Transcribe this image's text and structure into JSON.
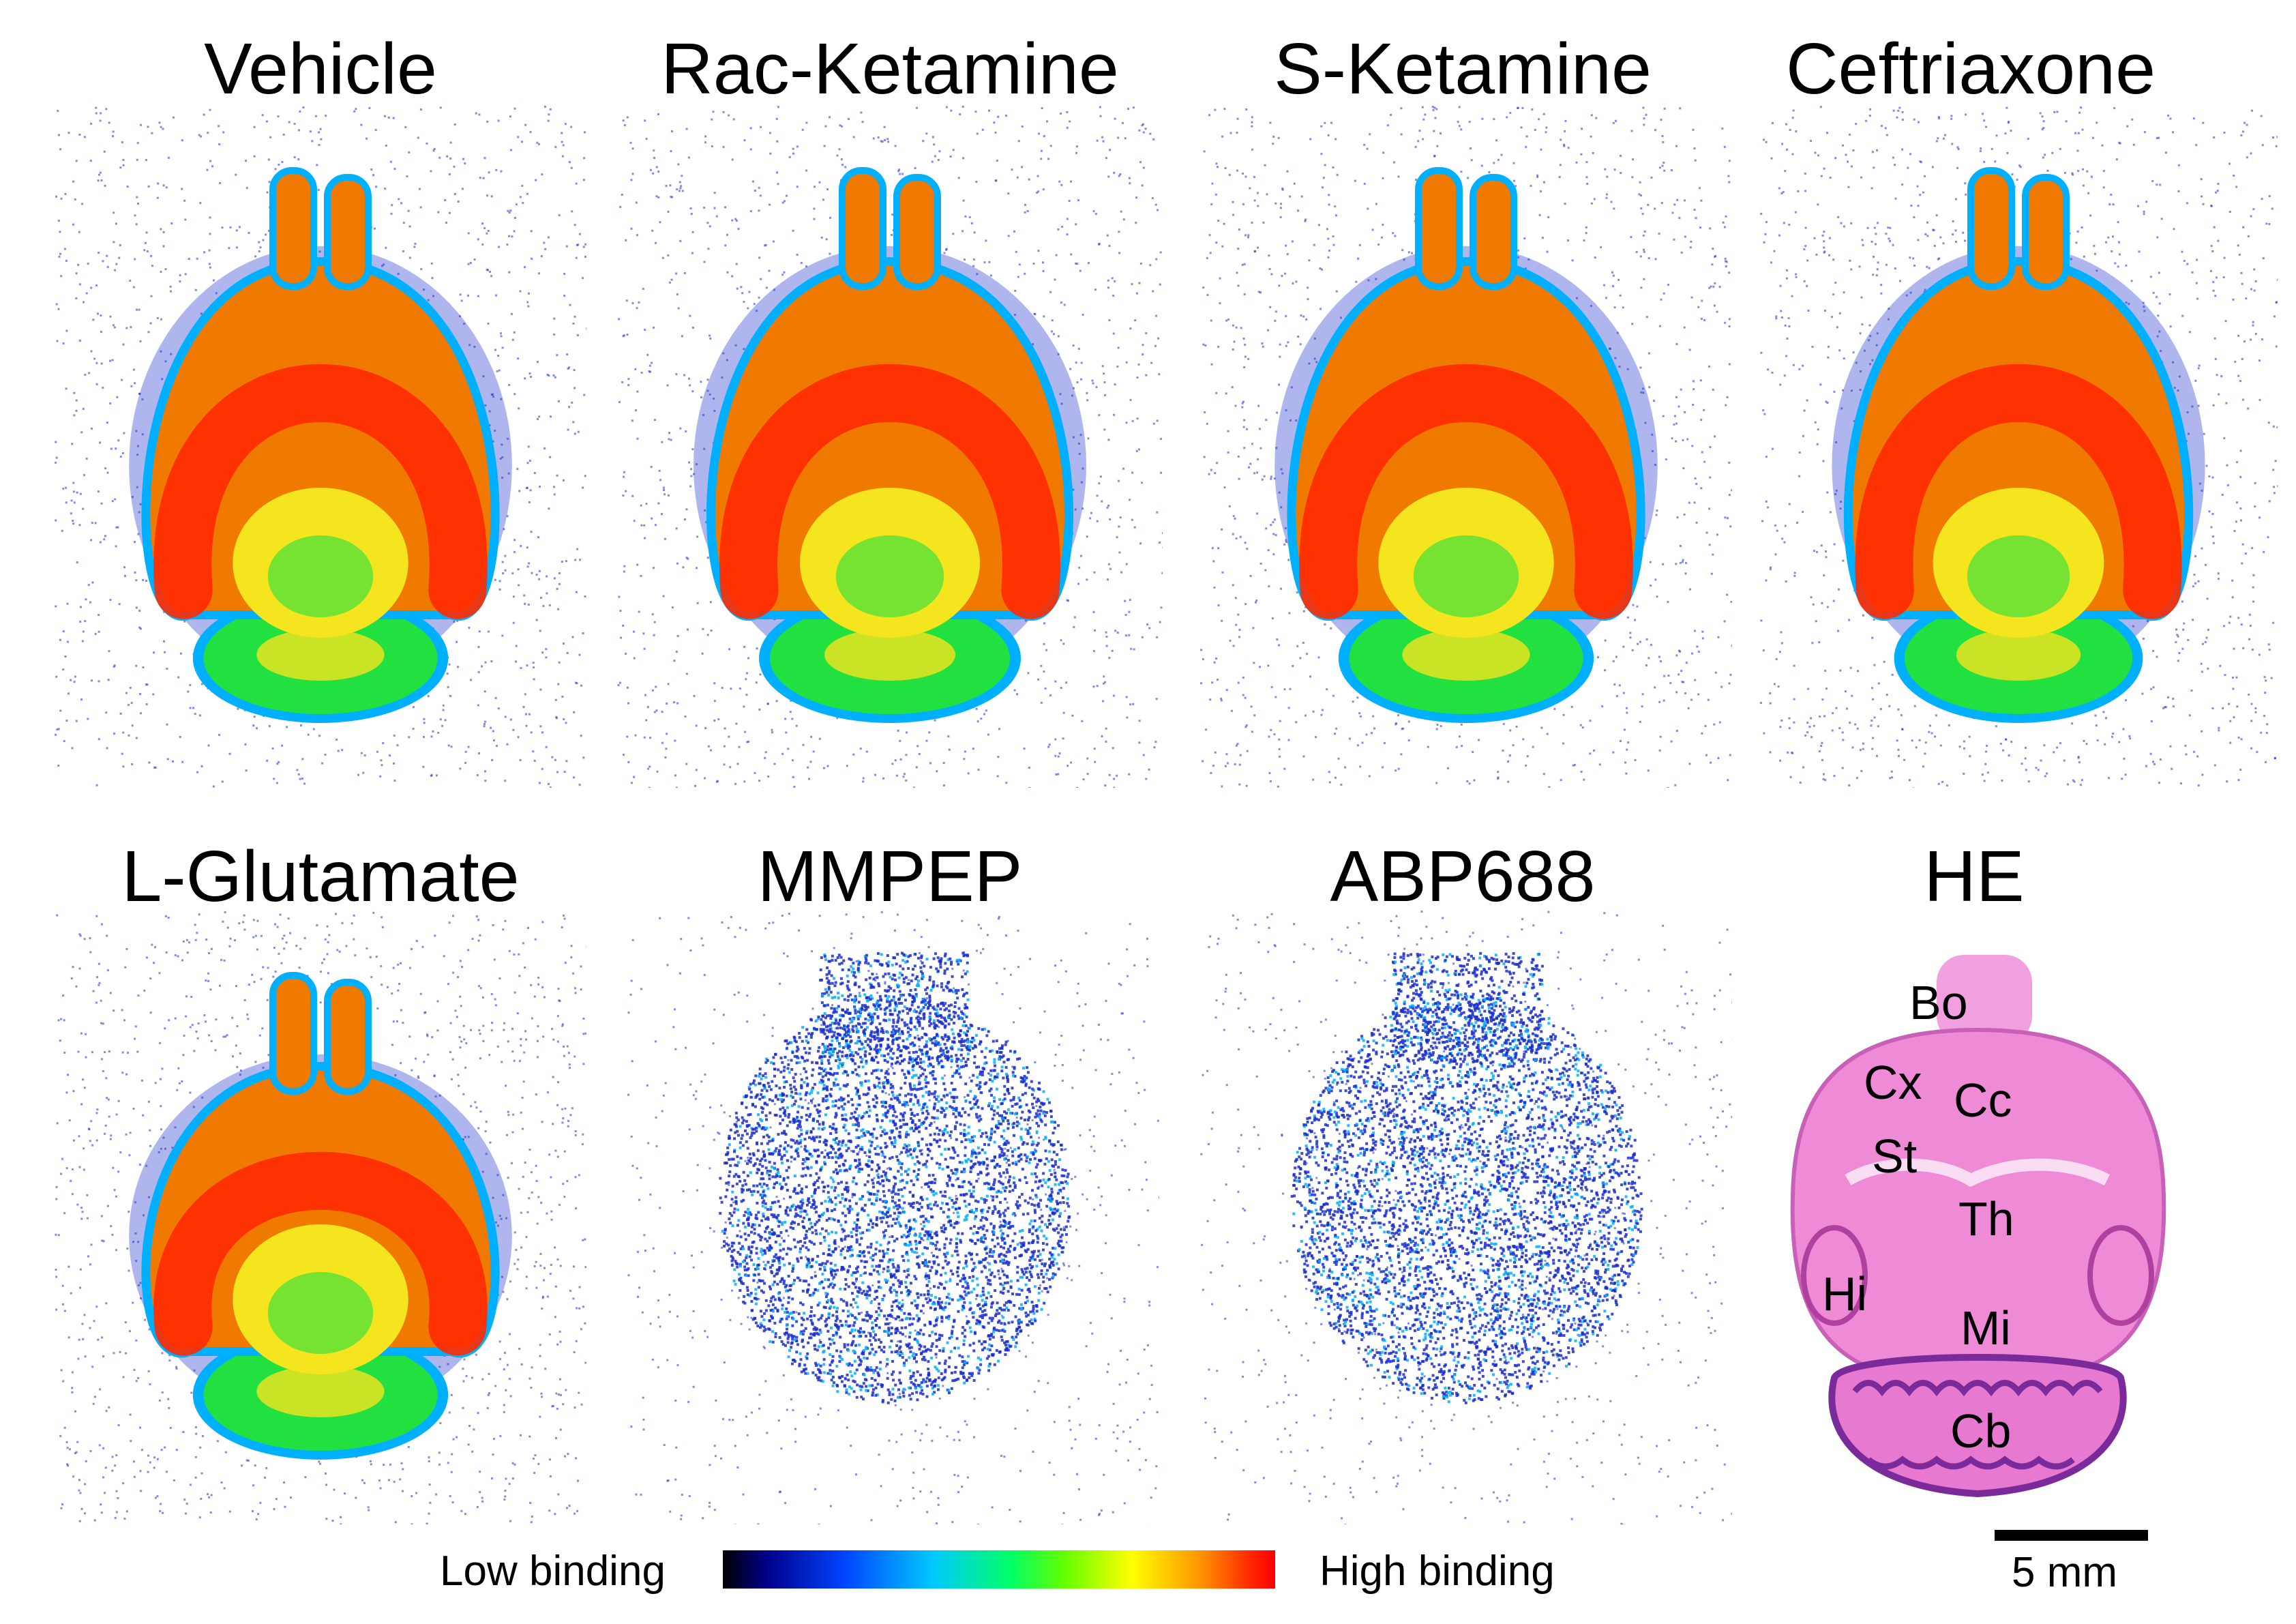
{
  "panels": {
    "vehicle": "Vehicle",
    "rac_ketamine": "Rac-Ketamine",
    "s_ketamine": "S-Ketamine",
    "ceftriaxone": "Ceftriaxone",
    "l_glutamate": "L-Glutamate",
    "mmpep": "MMPEP",
    "abp688": "ABP688",
    "he": "HE"
  },
  "he_regions": {
    "bo": "Bo",
    "cx": "Cx",
    "cc": "Cc",
    "st": "St",
    "th": "Th",
    "hi": "Hi",
    "mi": "Mi",
    "cb": "Cb"
  },
  "colorbar": {
    "low_label": "Low binding",
    "high_label": "High binding",
    "colors": [
      "#000000",
      "#00008b",
      "#0044ff",
      "#00c8ff",
      "#00ff66",
      "#66ff00",
      "#ffff00",
      "#ff9900",
      "#ff0000"
    ]
  },
  "scalebar": {
    "label": "5 mm"
  },
  "colors": {
    "high": "#ff2a00",
    "mid_high": "#f07a00",
    "mid": "#f5e51e",
    "mid_low": "#22e040",
    "low": "#00b0ff",
    "noise": "#1a2dcc",
    "he_tissue": "#ee8ad6",
    "he_dark": "#7a2a9a"
  }
}
